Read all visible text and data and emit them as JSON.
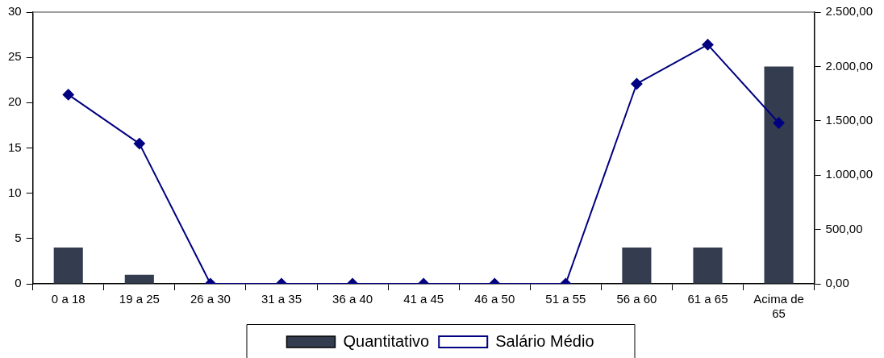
{
  "chart_data": {
    "type": "bar",
    "categories": [
      "0 a 18",
      "19 a 25",
      "26 a 30",
      "31 a 35",
      "36 a 40",
      "41 a 45",
      "46 a 50",
      "51 a 55",
      "56 a 60",
      "61 a 65",
      "Acima de 65"
    ],
    "series": [
      {
        "name": "Quantitativo",
        "color": "#333d4f",
        "values": [
          4,
          1,
          0,
          0,
          0,
          0,
          0,
          0,
          4,
          4,
          24
        ]
      },
      {
        "name": "Salário Médio",
        "type": "line",
        "axis": "y2",
        "color": "#000080",
        "marker": "diamond",
        "values": [
          1740,
          1290,
          0,
          0,
          0,
          0,
          0,
          0,
          1840,
          2200,
          1480
        ]
      }
    ],
    "ylim": [
      0,
      30
    ],
    "yticks": [
      0,
      5,
      10,
      15,
      20,
      25,
      30
    ],
    "y2lim": [
      0,
      2500
    ],
    "y2ticks": [
      {
        "value": 0,
        "label": "0,00"
      },
      {
        "value": 500,
        "label": "500,00"
      },
      {
        "value": 1000,
        "label": "1.000,00"
      },
      {
        "value": 1500,
        "label": "1.500,00"
      },
      {
        "value": 2000,
        "label": "2.000,00"
      },
      {
        "value": 2500,
        "label": "2.500,00"
      }
    ],
    "grid": false,
    "legend": "bottom"
  }
}
